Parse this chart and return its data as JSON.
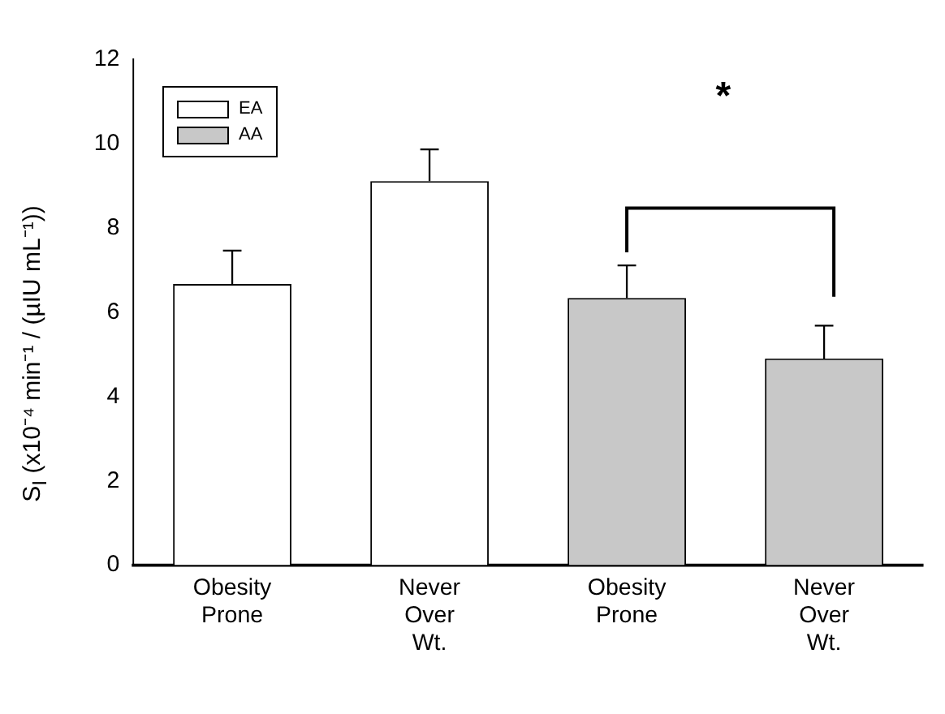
{
  "chart_data": {
    "type": "bar",
    "ylabel": "S$_{I}$ (x10⁻⁴  min⁻¹ / (µIU mL⁻¹))",
    "categories": [
      "Obesity Prone",
      "Never Over Wt.",
      "Obesity Prone",
      "Never Over Wt."
    ],
    "series": [
      {
        "name": "EA",
        "color": "#ffffff",
        "values": [
          6.67,
          9.11,
          null,
          null
        ],
        "errors": [
          0.79,
          0.75,
          null,
          null
        ]
      },
      {
        "name": "AA",
        "color": "#c8c8c8",
        "values": [
          null,
          null,
          6.34,
          4.9
        ],
        "errors": [
          null,
          null,
          0.77,
          0.78
        ]
      }
    ],
    "ylim": [
      0,
      12
    ],
    "yticks": [
      0,
      2,
      4,
      6,
      8,
      10,
      12
    ],
    "grid": false,
    "legend": "top left",
    "annotations": [
      "*"
    ]
  }
}
